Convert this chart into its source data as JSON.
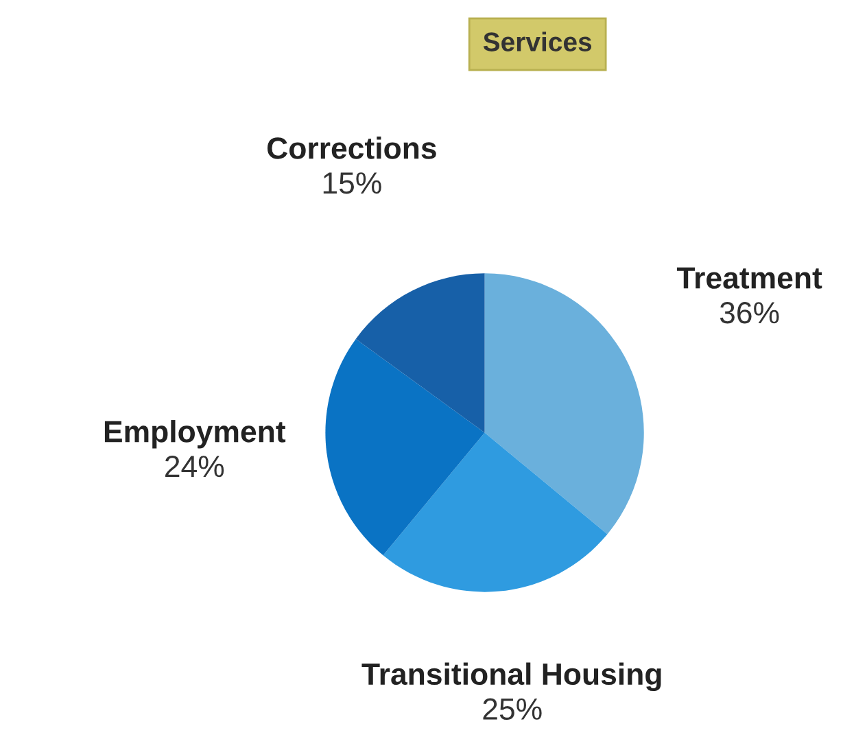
{
  "chart_data": {
    "type": "pie",
    "title": "Services",
    "categories": [
      "Treatment",
      "Transitional Housing",
      "Employment",
      "Corrections"
    ],
    "values": [
      36,
      25,
      24,
      15
    ],
    "value_labels": [
      "36%",
      "25%",
      "24%",
      "15%"
    ],
    "colors": [
      "#6ab0dc",
      "#2f9be0",
      "#0a73c4",
      "#1760a8"
    ],
    "legend": false
  }
}
